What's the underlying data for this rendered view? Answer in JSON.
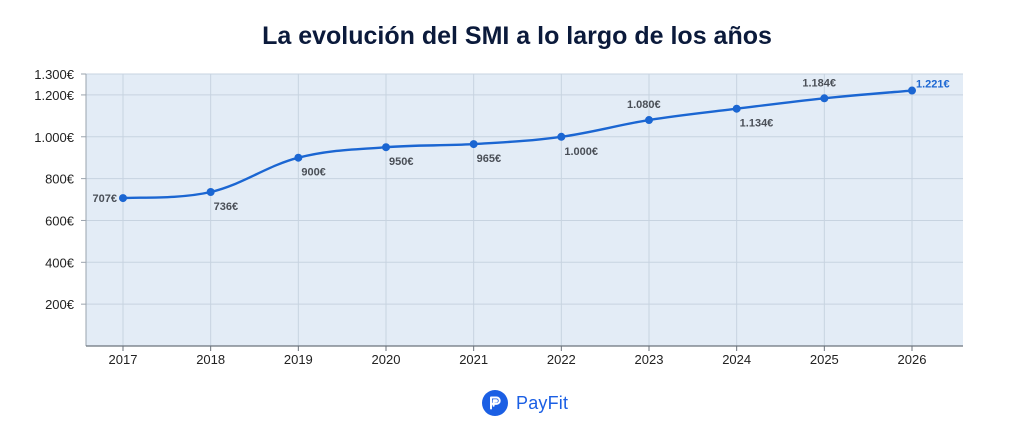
{
  "colors": {
    "plot_bg": "#e3ecf6",
    "grid": "#c7d3e0",
    "line": "#1b66d2",
    "label": "#4a4f57",
    "highlight_label": "#1b66d2",
    "brand": "#1b5fe4"
  },
  "brand": {
    "name": "PayFit",
    "icon": "payfit-logo-icon"
  },
  "chart_data": {
    "type": "line",
    "title": "La evolución del SMI a lo largo de los años",
    "xlabel": "",
    "ylabel": "",
    "x": [
      "2017",
      "2018",
      "2019",
      "2020",
      "2021",
      "2022",
      "2023",
      "2024",
      "2025",
      "2026"
    ],
    "series": [
      {
        "values": [
          707,
          736,
          900,
          950,
          965,
          1000,
          1080,
          1134,
          1184,
          1221
        ],
        "data_labels": [
          "707€",
          "736€",
          "900€",
          "950€",
          "965€",
          "1.000€",
          "1.080€",
          "1.134€",
          "1.184€",
          "1.221€"
        ]
      }
    ],
    "ylim": [
      0,
      1300
    ],
    "yticks": [
      200,
      400,
      600,
      800,
      1000,
      1200,
      1300
    ],
    "ytick_labels": [
      "200€",
      "400€",
      "600€",
      "800€",
      "1.000€",
      "1.200€",
      "1.300€"
    ],
    "grid": true,
    "highlight_last_point": true
  }
}
